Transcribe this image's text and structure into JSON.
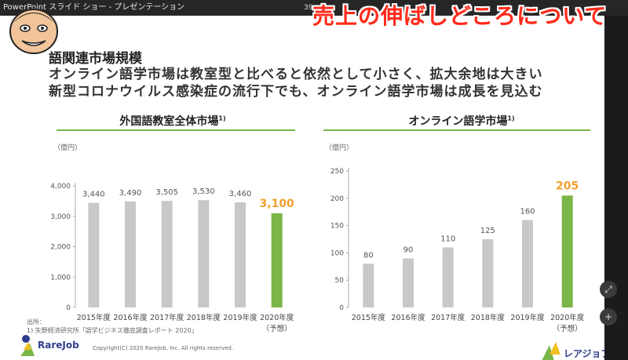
{
  "app": {
    "title": "PowerPoint スライド ショー - プレゼンテーション",
    "slide_number": "39"
  },
  "overlay_title": "売上の伸ばしどころについて",
  "slide": {
    "heading": "語関連市場規模",
    "lead_lines": [
      "オンライン語学市場は教室型と比べると依然として小さく、拡大余地は大きい",
      "新型コロナウイルス感染症の流行下でも、オンライン語学市場は成長を見込む"
    ],
    "source_label": "出所：",
    "source_text": "1) 矢野経済研究所「語学ビジネス徹底調査レポート 2020」",
    "copyright": "Copyright(C) 2020 RareJob, Inc. All rights reserved.",
    "logo_left": "RareJob",
    "logo_right": "レアジョブ英会話"
  },
  "accent_color": "#7ab648",
  "bar_color": "#c8c8c8",
  "highlight_label_color": "#f0a030",
  "chart_data": [
    {
      "type": "bar",
      "title": "外国語教室全体市場",
      "title_sup": "1)",
      "unit": "（億円）",
      "categories": [
        "2015年度",
        "2016年度",
        "2017年度",
        "2018年度",
        "2019年度",
        "2020年度"
      ],
      "category_notes": [
        "",
        "",
        "",
        "",
        "",
        "（予想）"
      ],
      "values": [
        3440,
        3490,
        3505,
        3530,
        3460,
        3100
      ],
      "value_labels": [
        "3,440",
        "3,490",
        "3,505",
        "3,530",
        "3,460",
        "3,100"
      ],
      "highlight_index": 5,
      "ylim": [
        0,
        4000
      ],
      "yticks": [
        0,
        1000,
        2000,
        3000,
        4000
      ],
      "ytick_labels": [
        "0",
        "1,000",
        "2,000",
        "3,000",
        "4,000"
      ],
      "grid": false
    },
    {
      "type": "bar",
      "title": "オンライン語学市場",
      "title_sup": "1)",
      "unit": "（億円）",
      "categories": [
        "2015年度",
        "2016年度",
        "2017年度",
        "2018年度",
        "2019年度",
        "2020年度"
      ],
      "category_notes": [
        "",
        "",
        "",
        "",
        "",
        "（予想）"
      ],
      "values": [
        80,
        90,
        110,
        125,
        160,
        205
      ],
      "value_labels": [
        "80",
        "90",
        "110",
        "125",
        "160",
        "205"
      ],
      "highlight_index": 5,
      "ylim": [
        0,
        250
      ],
      "yticks": [
        0,
        50,
        100,
        150,
        200,
        250
      ],
      "ytick_labels": [
        "0",
        "50",
        "100",
        "150",
        "200",
        "250"
      ],
      "grid": false
    }
  ],
  "sidebar": {
    "buttons": [
      "⤢",
      "+"
    ]
  }
}
